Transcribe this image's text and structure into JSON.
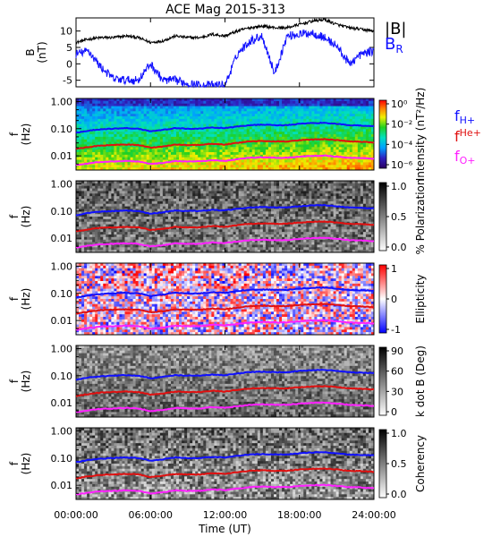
{
  "title": "ACE Mag 2015-313",
  "colors": {
    "btotal": "#000000",
    "br": "#1010ff",
    "fH": "#1010ff",
    "fHe": "#e01010",
    "fO": "#ff20ff"
  },
  "legends": {
    "mag": {
      "b_total": "|B|",
      "b_r_main": "B",
      "b_r_sub": "R"
    },
    "gyro": {
      "h_main": "f",
      "h_sub": "H+",
      "he_main": "f",
      "he_sub": "He+",
      "o_main": "f",
      "o_sub": "O+"
    }
  },
  "x_ticks": [
    "00:00:00",
    "06:00:00",
    "12:00:00",
    "18:00:00",
    "24:00:00"
  ],
  "x_label": "Time (UT)",
  "chart_data": [
    {
      "type": "line",
      "panel": "magnetic-field",
      "ylabel_main": "B",
      "ylabel_sub": "(nT)",
      "ylim": [
        -7,
        14
      ],
      "y_ticks": [
        "10",
        "5",
        "0",
        "-5"
      ],
      "x_hours": [
        0,
        1,
        2,
        3,
        4,
        5,
        6,
        7,
        8,
        9,
        10,
        11,
        12,
        13,
        14,
        15,
        16,
        17,
        18,
        19,
        20,
        21,
        22,
        23,
        24
      ],
      "series": [
        {
          "name": "|B|",
          "values": [
            6.5,
            7.5,
            8,
            8,
            8.5,
            8,
            6.5,
            7,
            8.5,
            8,
            8,
            9,
            8.5,
            10,
            11,
            11.5,
            11,
            11,
            12,
            13,
            13.5,
            12,
            11,
            10.5,
            10
          ]
        },
        {
          "name": "B_R",
          "values": [
            3,
            4,
            -1,
            -4.5,
            -5,
            -5,
            0,
            -5,
            -5,
            -6,
            -6.5,
            -6.5,
            -6.5,
            3,
            7,
            8.5,
            -3,
            8.5,
            9,
            9.5,
            8,
            5.5,
            0,
            3,
            4
          ]
        }
      ]
    },
    {
      "type": "heatmap",
      "panel": "intensity",
      "ylabel_main": "f",
      "ylabel_sub": "(Hz)",
      "y_ticks": [
        "1.00",
        "0.10",
        "0.01"
      ],
      "colorbar_label": "Intensity (nT²/Hz)",
      "colorbar_ticks": [
        "10⁰",
        "10⁻²",
        "10⁻⁴",
        "10⁻⁶"
      ]
    },
    {
      "type": "heatmap",
      "panel": "polarization",
      "ylabel_main": "f",
      "ylabel_sub": "(Hz)",
      "y_ticks": [
        "1.00",
        "0.10",
        "0.01"
      ],
      "colorbar_label": "% Polarization",
      "colorbar_ticks": [
        "1.0",
        "0.5",
        "0.0"
      ]
    },
    {
      "type": "heatmap",
      "panel": "ellipticity",
      "ylabel_main": "f",
      "ylabel_sub": "(Hz)",
      "y_ticks": [
        "1.00",
        "0.10",
        "0.01"
      ],
      "colorbar_label": "Ellipticity",
      "colorbar_ticks": [
        "1",
        "0",
        "-1"
      ]
    },
    {
      "type": "heatmap",
      "panel": "k-dot-b",
      "ylabel_main": "f",
      "ylabel_sub": "(Hz)",
      "y_ticks": [
        "1.00",
        "0.10",
        "0.01"
      ],
      "colorbar_label": "k dot B (Deg)",
      "colorbar_ticks": [
        "90",
        "60",
        "30",
        "0"
      ]
    },
    {
      "type": "heatmap",
      "panel": "coherency",
      "ylabel_main": "f",
      "ylabel_sub": "(Hz)",
      "y_ticks": [
        "1.00",
        "0.10",
        "0.01"
      ],
      "colorbar_label": "Coherency",
      "colorbar_ticks": [
        "1.0",
        "0.5",
        "0.0"
      ]
    }
  ],
  "gyrofrequency": {
    "x_hours": [
      0,
      1,
      2,
      3,
      4,
      5,
      6,
      7,
      8,
      9,
      10,
      11,
      12,
      13,
      14,
      15,
      16,
      17,
      18,
      19,
      20,
      21,
      22,
      23,
      24
    ],
    "fH": [
      0.07,
      0.085,
      0.095,
      0.1,
      0.105,
      0.1,
      0.08,
      0.09,
      0.105,
      0.1,
      0.1,
      0.11,
      0.105,
      0.12,
      0.135,
      0.14,
      0.135,
      0.135,
      0.15,
      0.16,
      0.165,
      0.15,
      0.135,
      0.13,
      0.125
    ],
    "fHe": [
      0.018,
      0.021,
      0.024,
      0.025,
      0.026,
      0.025,
      0.02,
      0.022,
      0.026,
      0.025,
      0.025,
      0.028,
      0.026,
      0.03,
      0.034,
      0.035,
      0.034,
      0.034,
      0.038,
      0.04,
      0.041,
      0.038,
      0.034,
      0.033,
      0.031
    ],
    "fO": [
      0.0045,
      0.0053,
      0.006,
      0.0062,
      0.0065,
      0.0062,
      0.005,
      0.0055,
      0.0065,
      0.0062,
      0.0062,
      0.007,
      0.0066,
      0.0075,
      0.0085,
      0.0088,
      0.0085,
      0.0085,
      0.0094,
      0.01,
      0.0103,
      0.0094,
      0.0085,
      0.0082,
      0.0078
    ]
  }
}
